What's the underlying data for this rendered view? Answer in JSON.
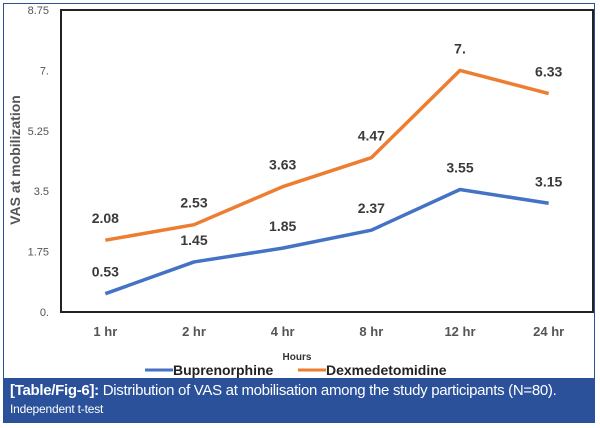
{
  "chart_data": {
    "type": "line",
    "title": "",
    "xlabel": "Hours",
    "ylabel": "VAS at mobilization",
    "categories": [
      "1 hr",
      "2 hr",
      "4 hr",
      "8 hr",
      "12 hr",
      "24 hr"
    ],
    "y_ticks": [
      "0.",
      "1.75",
      "3.5",
      "5.25",
      "7.",
      "8.75"
    ],
    "ylim": [
      0,
      8.75
    ],
    "grid": false,
    "legend_position": "bottom",
    "series": [
      {
        "name": "Buprenorphine",
        "color": "#4472c4",
        "values": [
          0.53,
          1.45,
          1.85,
          2.37,
          3.55,
          3.15
        ],
        "labels": [
          "0.53",
          "1.45",
          "1.85",
          "2.37",
          "3.55",
          "3.15"
        ]
      },
      {
        "name": "Dexmedetomidine",
        "color": "#ed7d31",
        "values": [
          2.08,
          2.53,
          3.63,
          4.47,
          7.0,
          6.33
        ],
        "labels": [
          "2.08",
          "2.53",
          "3.63",
          "4.47",
          "7.",
          "6.33"
        ]
      }
    ]
  },
  "caption": {
    "label": "[Table/Fig-6]:",
    "text": " Distribution of VAS at mobilisation among the study participants (N=80).",
    "note": "Independent t-test"
  }
}
